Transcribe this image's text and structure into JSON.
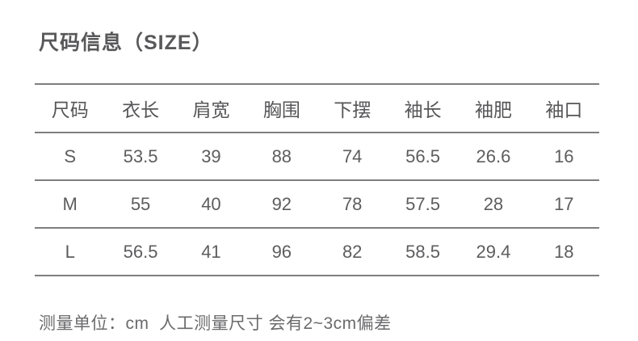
{
  "page": {
    "title": "尺码信息（SIZE）",
    "footnote": "测量单位：cm  人工测量尺寸 会有2~3cm偏差"
  },
  "size_table": {
    "columns": [
      "尺码",
      "衣长",
      "肩宽",
      "胸围",
      "下摆",
      "袖长",
      "袖肥",
      "袖口"
    ],
    "rows": [
      [
        "S",
        "53.5",
        "39",
        "88",
        "74",
        "56.5",
        "26.6",
        "16"
      ],
      [
        "M",
        "55",
        "40",
        "92",
        "78",
        "57.5",
        "28",
        "17"
      ],
      [
        "L",
        "56.5",
        "41",
        "96",
        "82",
        "58.5",
        "29.4",
        "18"
      ]
    ]
  },
  "colors": {
    "title_text": "#58585a",
    "table_text": "#5d5d5f",
    "rule_line": "#7e7e80",
    "note_text": "#6b6b6d",
    "background": "#ffffff"
  }
}
